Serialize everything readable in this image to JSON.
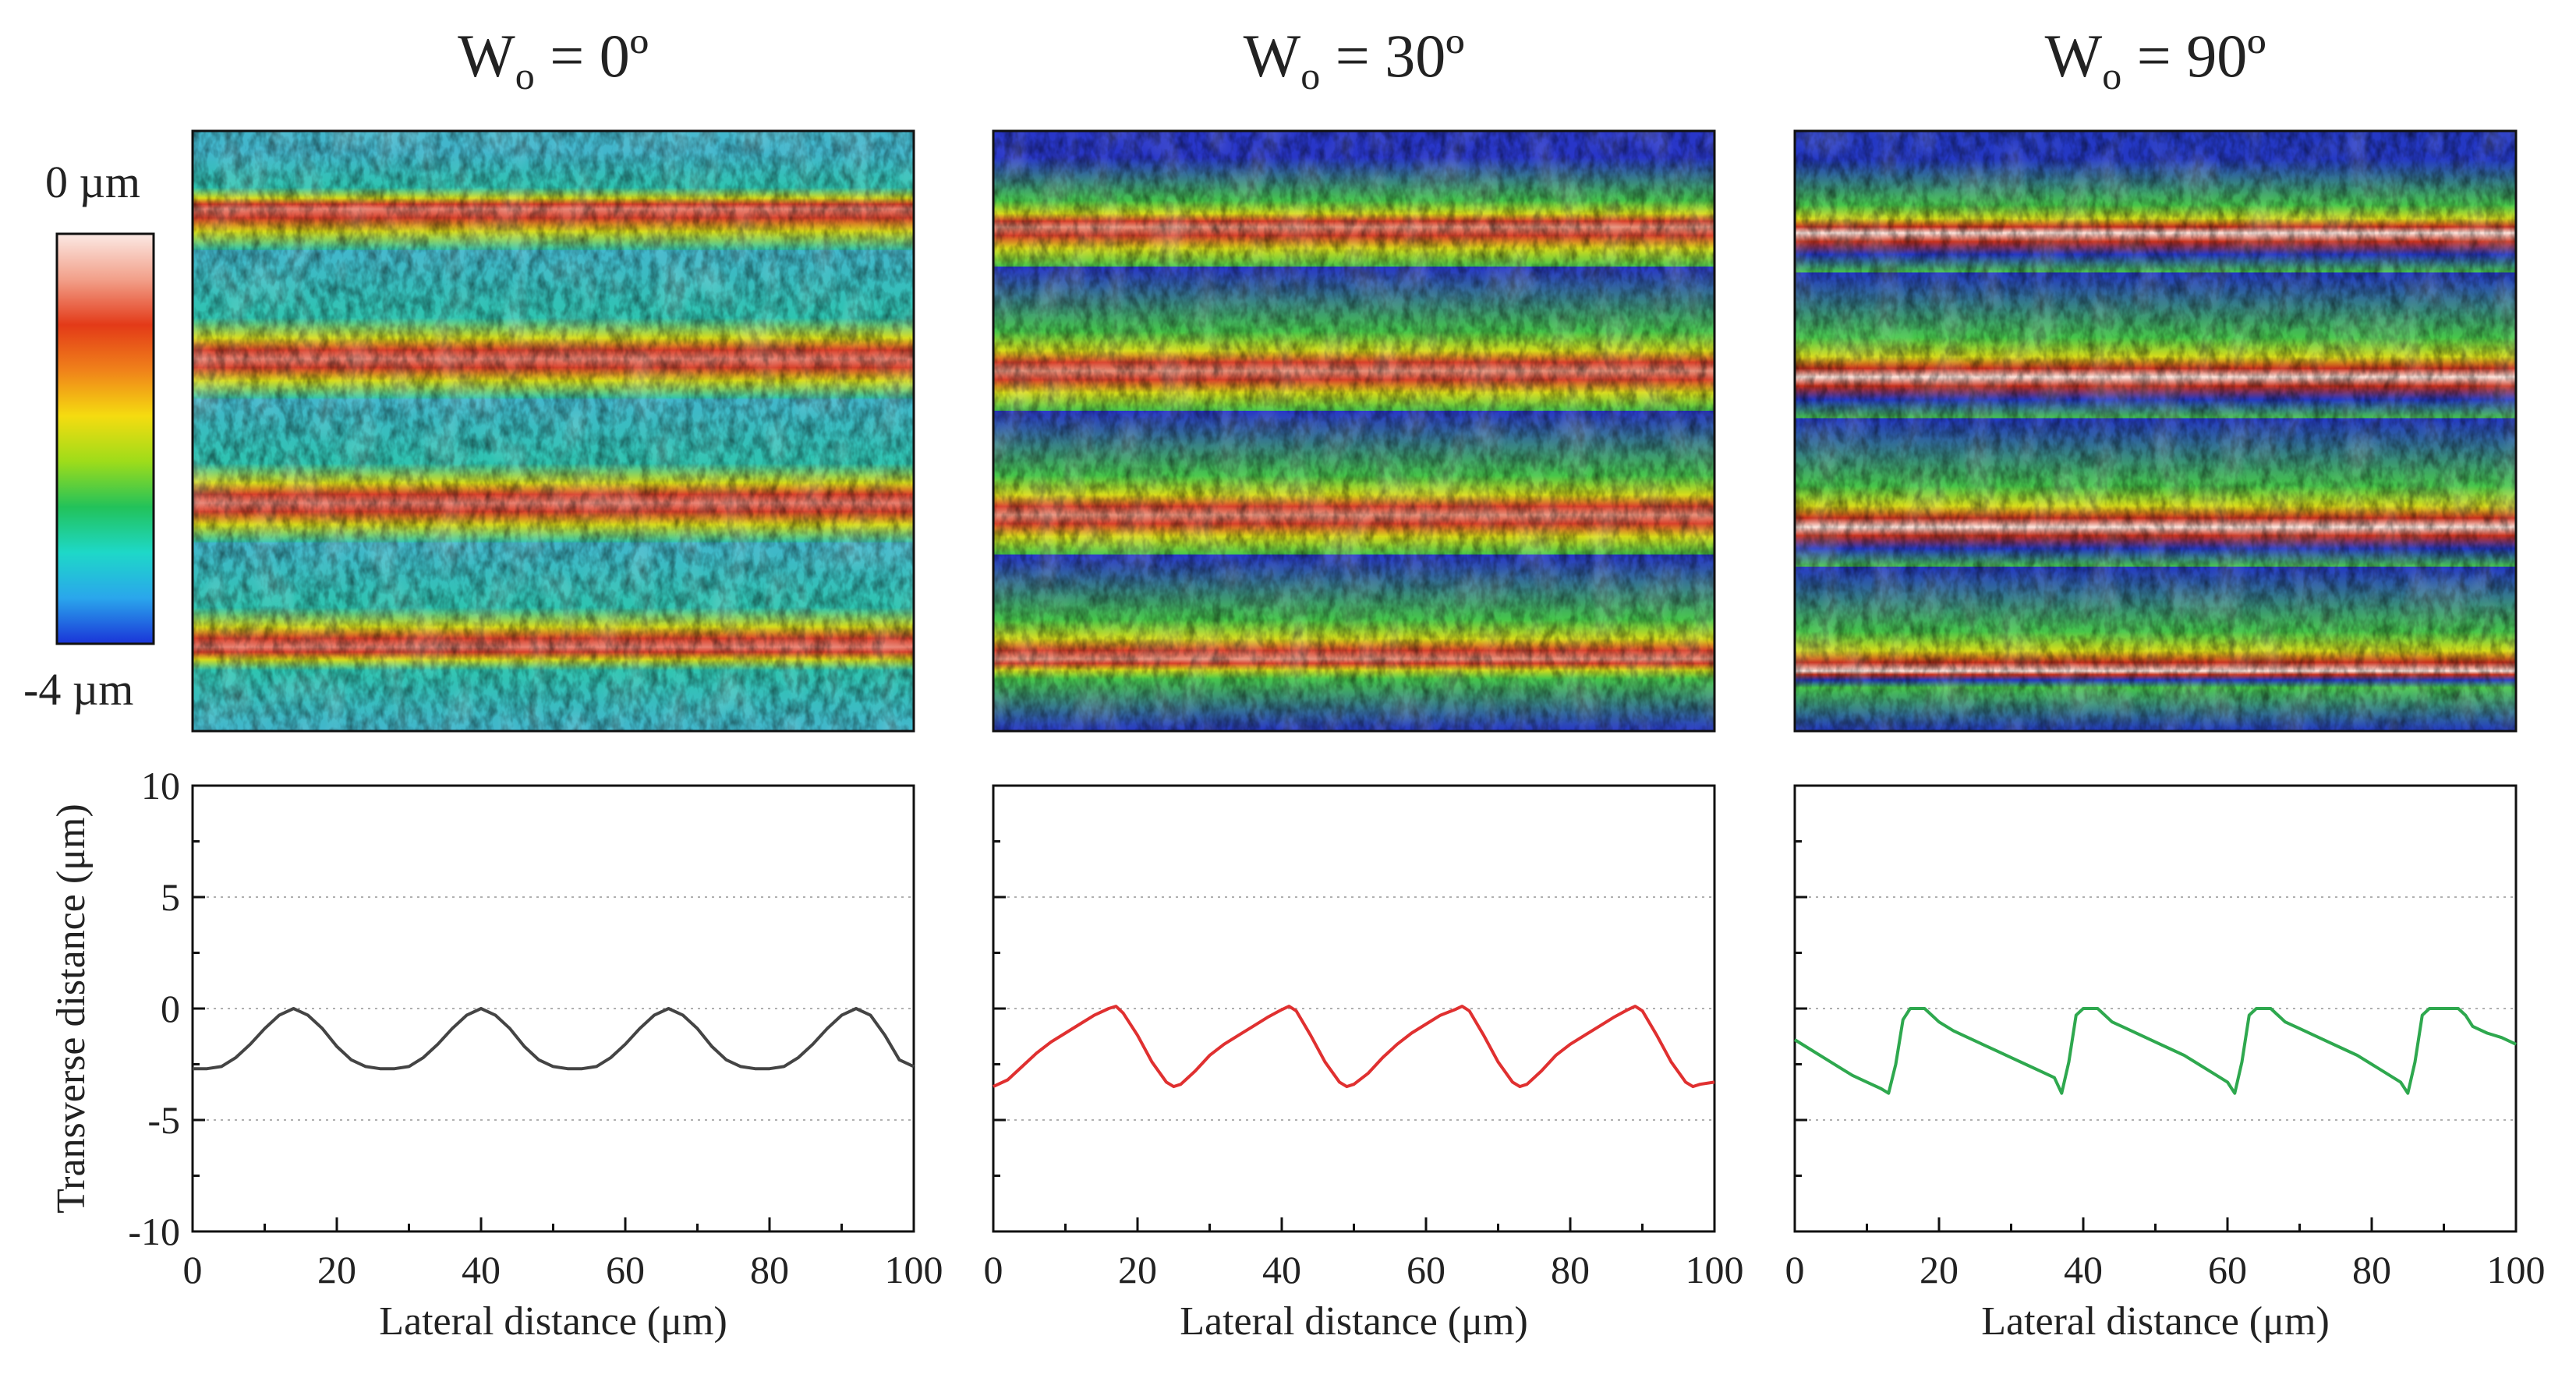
{
  "figure": {
    "colorbar": {
      "top_label": "0 µm",
      "bottom_label": "-4 µm",
      "colors": [
        "#fbe9e4",
        "#f2a08a",
        "#e33a18",
        "#f0821a",
        "#f5dc10",
        "#9edc1a",
        "#22c25a",
        "#1ed8c8",
        "#2aa6ec",
        "#1a34d8"
      ]
    },
    "maps": [
      {
        "title_main": "W",
        "title_sub": "o",
        "title_rest": " = 0º",
        "ridge_color": "#d8402a",
        "highlight": "#e88070",
        "trough_color": "#42b6cc",
        "ridges_frac": [
          0.13,
          0.38,
          0.62,
          0.86
        ]
      },
      {
        "title_main": "W",
        "title_sub": "o",
        "title_rest": " = 30º",
        "ridge_color": "#d8402a",
        "highlight": "#e6907a",
        "trough_color": "#2836c8",
        "ridges_frac": [
          0.16,
          0.4,
          0.64,
          0.88
        ]
      },
      {
        "title_main": "W",
        "title_sub": "o",
        "title_rest": " = 90º",
        "ridge_color": "#c8301c",
        "highlight": "#fce4dc",
        "trough_color": "#2438c4",
        "ridges_frac": [
          0.17,
          0.41,
          0.66,
          0.9
        ]
      }
    ]
  },
  "chart_data": [
    {
      "type": "line",
      "name": "profile-0deg",
      "series": [
        {
          "name": "Wo = 0º",
          "color": "#444444"
        }
      ],
      "x": [
        0,
        2,
        4,
        6,
        8,
        10,
        12,
        14,
        16,
        18,
        20,
        22,
        24,
        26,
        28,
        30,
        32,
        34,
        36,
        38,
        40,
        42,
        44,
        46,
        48,
        50,
        52,
        54,
        56,
        58,
        60,
        62,
        64,
        66,
        68,
        70,
        72,
        74,
        76,
        78,
        80,
        82,
        84,
        86,
        88,
        90,
        92,
        94,
        96,
        98,
        100
      ],
      "y": [
        -2.7,
        -2.7,
        -2.6,
        -2.2,
        -1.6,
        -0.9,
        -0.3,
        0.0,
        -0.3,
        -0.9,
        -1.7,
        -2.3,
        -2.6,
        -2.7,
        -2.7,
        -2.6,
        -2.2,
        -1.6,
        -0.9,
        -0.3,
        0.0,
        -0.3,
        -0.9,
        -1.7,
        -2.3,
        -2.6,
        -2.7,
        -2.7,
        -2.6,
        -2.2,
        -1.6,
        -0.9,
        -0.3,
        0.0,
        -0.3,
        -0.9,
        -1.7,
        -2.3,
        -2.6,
        -2.7,
        -2.7,
        -2.6,
        -2.2,
        -1.6,
        -0.9,
        -0.3,
        0.0,
        -0.3,
        -1.2,
        -2.3,
        -2.6
      ],
      "xlabel": "Lateral distance (μm)",
      "ylabel": "Transverse distance (μm)",
      "xlim": [
        0,
        100
      ],
      "ylim": [
        -10,
        10
      ],
      "xticks": [
        "0",
        "20",
        "40",
        "60",
        "80",
        "100"
      ],
      "yticks": [
        "10",
        "5",
        "0",
        "-5",
        "-10"
      ],
      "grid": "dotted horizontal"
    },
    {
      "type": "line",
      "name": "profile-30deg",
      "series": [
        {
          "name": "Wo = 30º",
          "color": "#e03030"
        }
      ],
      "x": [
        0,
        2,
        4,
        6,
        8,
        10,
        12,
        14,
        16,
        17,
        18,
        20,
        22,
        24,
        25,
        26,
        28,
        30,
        32,
        34,
        36,
        38,
        40,
        41,
        42,
        44,
        46,
        48,
        49,
        50,
        52,
        54,
        56,
        58,
        60,
        62,
        64,
        65,
        66,
        68,
        70,
        72,
        73,
        74,
        76,
        78,
        80,
        82,
        84,
        86,
        88,
        89,
        90,
        92,
        94,
        96,
        97,
        98,
        100
      ],
      "y": [
        -3.5,
        -3.2,
        -2.6,
        -2.0,
        -1.5,
        -1.1,
        -0.7,
        -0.3,
        0.0,
        0.1,
        -0.2,
        -1.2,
        -2.4,
        -3.3,
        -3.5,
        -3.4,
        -2.8,
        -2.1,
        -1.6,
        -1.2,
        -0.8,
        -0.4,
        -0.05,
        0.1,
        -0.1,
        -1.2,
        -2.4,
        -3.3,
        -3.5,
        -3.4,
        -2.9,
        -2.2,
        -1.6,
        -1.1,
        -0.7,
        -0.3,
        -0.05,
        0.1,
        -0.1,
        -1.2,
        -2.4,
        -3.3,
        -3.5,
        -3.4,
        -2.8,
        -2.1,
        -1.6,
        -1.2,
        -0.8,
        -0.4,
        -0.05,
        0.1,
        -0.1,
        -1.2,
        -2.4,
        -3.3,
        -3.5,
        -3.4,
        -3.3
      ],
      "xlabel": "Lateral distance (μm)",
      "xlim": [
        0,
        100
      ],
      "ylim": [
        -10,
        10
      ],
      "xticks": [
        "0",
        "20",
        "40",
        "60",
        "80",
        "100"
      ],
      "grid": "dotted horizontal"
    },
    {
      "type": "line",
      "name": "profile-90deg",
      "series": [
        {
          "name": "Wo = 90º",
          "color": "#2ea84e"
        }
      ],
      "x": [
        0,
        2,
        4,
        6,
        8,
        10,
        12,
        13,
        14,
        15,
        16,
        18,
        20,
        22,
        24,
        26,
        28,
        30,
        32,
        34,
        36,
        37,
        38,
        39,
        40,
        42,
        44,
        46,
        48,
        50,
        52,
        54,
        56,
        58,
        60,
        61,
        62,
        63,
        64,
        66,
        68,
        70,
        72,
        74,
        76,
        78,
        80,
        82,
        84,
        85,
        86,
        87,
        88,
        90,
        92,
        93,
        94,
        96,
        98,
        100
      ],
      "y": [
        -1.4,
        -1.8,
        -2.2,
        -2.6,
        -3.0,
        -3.3,
        -3.6,
        -3.8,
        -2.5,
        -0.5,
        0.0,
        0.0,
        -0.6,
        -1.0,
        -1.3,
        -1.6,
        -1.9,
        -2.2,
        -2.5,
        -2.8,
        -3.1,
        -3.8,
        -2.4,
        -0.3,
        0.0,
        0.0,
        -0.6,
        -0.9,
        -1.2,
        -1.5,
        -1.8,
        -2.1,
        -2.5,
        -2.9,
        -3.3,
        -3.8,
        -2.4,
        -0.3,
        0.0,
        0.0,
        -0.6,
        -0.9,
        -1.2,
        -1.5,
        -1.8,
        -2.1,
        -2.5,
        -2.9,
        -3.3,
        -3.8,
        -2.4,
        -0.3,
        0.0,
        0.0,
        0.0,
        -0.3,
        -0.8,
        -1.1,
        -1.3,
        -1.6
      ],
      "xlabel": "Lateral distance (μm)",
      "xlim": [
        0,
        100
      ],
      "ylim": [
        -10,
        10
      ],
      "xticks": [
        "0",
        "20",
        "40",
        "60",
        "80",
        "100"
      ],
      "grid": "dotted horizontal"
    }
  ]
}
